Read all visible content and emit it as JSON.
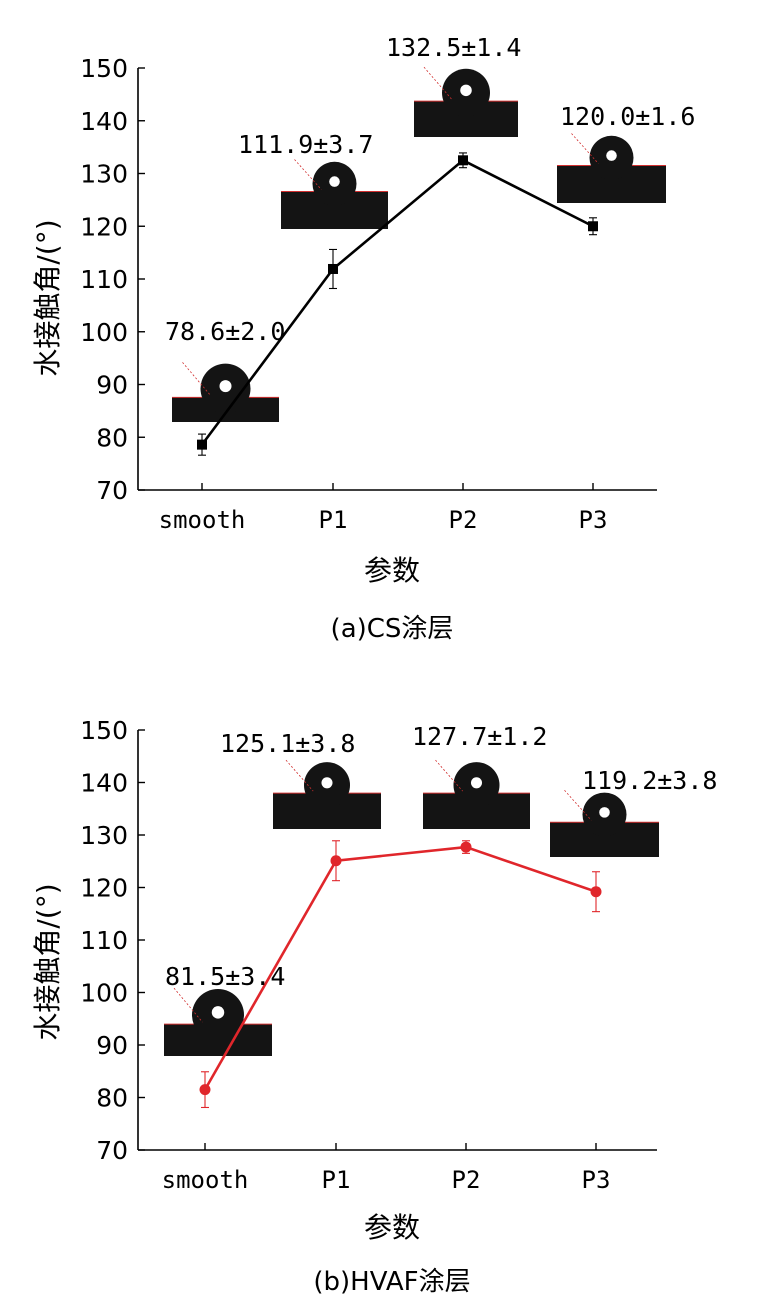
{
  "charts": [
    {
      "caption": "(a)CS涂层",
      "accent": "#000000",
      "marker": "square"
    },
    {
      "caption": "(b)HVAF涂层",
      "accent": "#e0262b",
      "marker": "circle"
    }
  ],
  "chart_data": [
    {
      "type": "line",
      "title": "(a)CS涂层",
      "xlabel": "参数",
      "ylabel": "水接触角/(°)",
      "categories": [
        "smooth",
        "P1",
        "P2",
        "P3"
      ],
      "values": [
        78.6,
        111.9,
        132.5,
        120.0
      ],
      "errors": [
        2.0,
        3.7,
        1.4,
        1.6
      ],
      "data_labels": [
        "78.6±2.0",
        "111.9±3.7",
        "132.5±1.4",
        "120.0±1.6"
      ],
      "ylim": [
        70,
        150
      ],
      "yticks": [
        70,
        80,
        90,
        100,
        110,
        120,
        130,
        140,
        150
      ],
      "grid": false,
      "series_color": "#000000"
    },
    {
      "type": "line",
      "title": "(b)HVAF涂层",
      "xlabel": "参数",
      "ylabel": "水接触角/(°)",
      "categories": [
        "smooth",
        "P1",
        "P2",
        "P3"
      ],
      "values": [
        81.5,
        125.1,
        127.7,
        119.2
      ],
      "errors": [
        3.4,
        3.8,
        1.2,
        3.8
      ],
      "data_labels": [
        "81.5±3.4",
        "125.1±3.8",
        "127.7±1.2",
        "119.2±3.8"
      ],
      "ylim": [
        70,
        150
      ],
      "yticks": [
        70,
        80,
        90,
        100,
        110,
        120,
        130,
        140,
        150
      ],
      "grid": false,
      "series_color": "#e0262b"
    }
  ]
}
